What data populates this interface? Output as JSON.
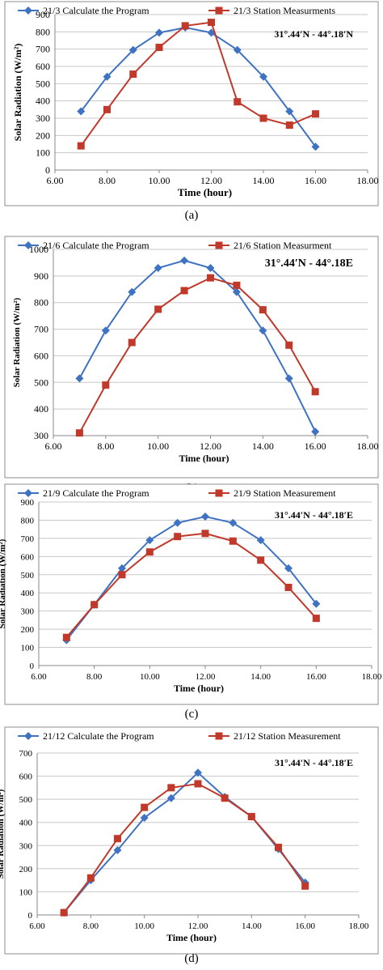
{
  "colors": {
    "program": "#3f73c2",
    "station": "#c0392b",
    "grid": "#c8c8c8",
    "frame": "#8c8c8c"
  },
  "chart_data": [
    {
      "type": "line",
      "panel_label": "(a)",
      "coord_label": "31°.44′N - 44°.18′N",
      "xlabel": "Time (hour)",
      "ylabel": "Solar Radiation (W/m²)",
      "xlim": [
        6,
        18
      ],
      "x_ticks": [
        "6.00",
        "8.00",
        "10.00",
        "12.00",
        "14.00",
        "16.00",
        "18.00"
      ],
      "ylim": [
        0,
        900
      ],
      "y_ticks": [
        "0",
        "100",
        "200",
        "300",
        "400",
        "500",
        "600",
        "700",
        "800",
        "900"
      ],
      "x": [
        7,
        8,
        9,
        10,
        11,
        12,
        13,
        14,
        15,
        16
      ],
      "series": [
        {
          "name": "21/3 Calculate the Program",
          "marker": "diamond",
          "values": [
            340,
            540,
            695,
            795,
            825,
            795,
            695,
            540,
            340,
            135
          ]
        },
        {
          "name": "21/3 Station Measurments",
          "marker": "square",
          "values": [
            140,
            350,
            555,
            710,
            835,
            855,
            395,
            300,
            260,
            325
          ]
        }
      ],
      "legend": "top",
      "grid": true
    },
    {
      "type": "line",
      "panel_label": "(b)",
      "coord_label": "31°.44′N - 44°.18E",
      "xlabel": "Time (hour)",
      "ylabel": "Solar Radiation (W/m²)",
      "xlim": [
        6,
        18
      ],
      "x_ticks": [
        "6.00",
        "8.00",
        "10.00",
        "12.00",
        "14.00",
        "16.00",
        "18.00"
      ],
      "ylim": [
        300,
        1000
      ],
      "y_ticks": [
        "300",
        "400",
        "500",
        "600",
        "700",
        "800",
        "900",
        "1000"
      ],
      "x": [
        7,
        8,
        9,
        10,
        11,
        12,
        13,
        14,
        15,
        16
      ],
      "series": [
        {
          "name": "21/6 Calculate the Program",
          "marker": "diamond",
          "values": [
            515,
            695,
            840,
            930,
            958,
            930,
            840,
            695,
            515,
            315
          ]
        },
        {
          "name": "21/6 Station Measurment",
          "marker": "square",
          "values": [
            310,
            490,
            650,
            775,
            845,
            893,
            865,
            773,
            640,
            465
          ]
        }
      ],
      "legend": "top",
      "grid": true
    },
    {
      "type": "line",
      "panel_label": "(c)",
      "coord_label": "31°.44′N - 44°.18′E",
      "xlabel": "Time (hour)",
      "ylabel": "Solar Radiation (W/m²)",
      "xlim": [
        6,
        18
      ],
      "x_ticks": [
        "6.00",
        "8.00",
        "10.00",
        "12.00",
        "14.00",
        "16.00",
        "18.00"
      ],
      "ylim": [
        0,
        900
      ],
      "y_ticks": [
        "0",
        "100",
        "200",
        "300",
        "400",
        "500",
        "600",
        "700",
        "800",
        "900"
      ],
      "x": [
        7,
        8,
        9,
        10,
        11,
        12,
        13,
        14,
        15,
        16
      ],
      "series": [
        {
          "name": "21/9 Calculate the Program",
          "marker": "diamond",
          "values": [
            140,
            335,
            535,
            690,
            785,
            820,
            785,
            690,
            535,
            340
          ]
        },
        {
          "name": "21/9 Station Measurement",
          "marker": "square",
          "values": [
            155,
            335,
            500,
            625,
            710,
            727,
            685,
            580,
            430,
            260
          ]
        }
      ],
      "legend": "top",
      "grid": true
    },
    {
      "type": "line",
      "panel_label": "(d)",
      "coord_label": "31°.44′N - 44°.18′E",
      "xlabel": "Time (hour)",
      "ylabel": "Solar Radiation (W/m²)",
      "xlim": [
        6,
        18
      ],
      "x_ticks": [
        "6.00",
        "8.00",
        "10.00",
        "12.00",
        "14.00",
        "16.00",
        "18.00"
      ],
      "ylim": [
        0,
        700
      ],
      "y_ticks": [
        "0",
        "100",
        "200",
        "300",
        "400",
        "500",
        "600",
        "700"
      ],
      "x": [
        7,
        8,
        9,
        10,
        11,
        12,
        13,
        14,
        15,
        16
      ],
      "series": [
        {
          "name": "21/12 Calculate the Program",
          "marker": "diamond",
          "values": [
            10,
            150,
            280,
            420,
            505,
            615,
            510,
            425,
            285,
            140
          ]
        },
        {
          "name": "21/12 Station Measurement",
          "marker": "square",
          "values": [
            10,
            160,
            330,
            465,
            550,
            567,
            505,
            425,
            292,
            125
          ]
        }
      ],
      "legend": "top",
      "grid": true
    }
  ]
}
